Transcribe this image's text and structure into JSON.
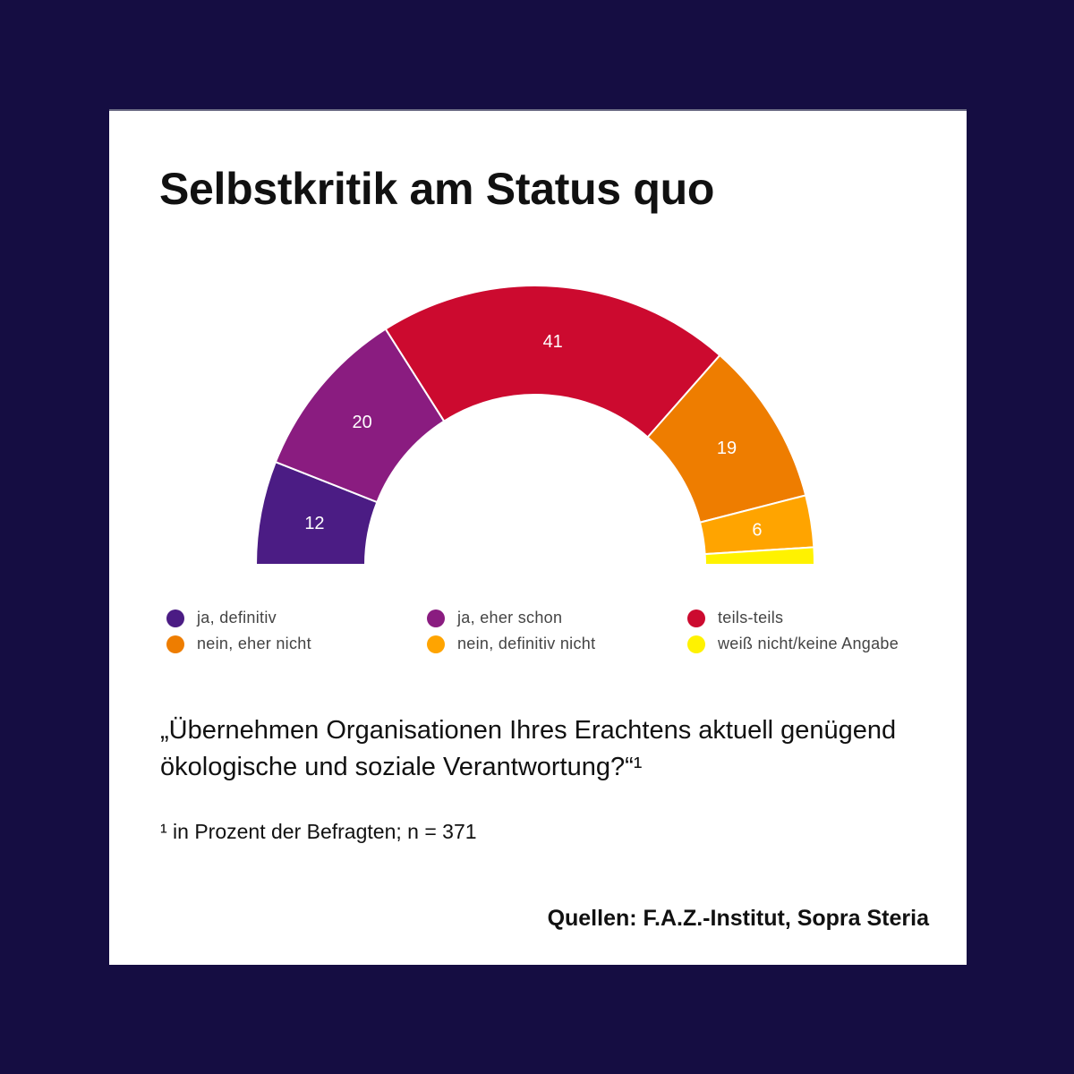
{
  "title": "Selbstkritik am Status quo",
  "chart_data": {
    "type": "pie",
    "variant": "half-donut",
    "categories": [
      "ja, definitiv",
      "ja, eher schon",
      "teils-teils",
      "nein, eher nicht",
      "nein, definitiv nicht",
      "weiß nicht/keine Angabe"
    ],
    "values": [
      12,
      20,
      41,
      19,
      6,
      2
    ],
    "data_labels": [
      "12",
      "20",
      "41",
      "19",
      "6",
      ""
    ],
    "colors": [
      "#4b1c84",
      "#8a1c80",
      "#cc0a2f",
      "#ee7d00",
      "#ffa400",
      "#fff200"
    ],
    "unit": "in Prozent der Befragten",
    "legend_position": "bottom"
  },
  "question": "„Übernehmen Organisationen Ihres Erachtens aktuell genügend ökologische und soziale Verantwortung?“¹",
  "footnote": "¹ in Prozent der Befragten; n = 371",
  "source": "Quellen: F.A.Z.-Institut, Sopra Steria"
}
